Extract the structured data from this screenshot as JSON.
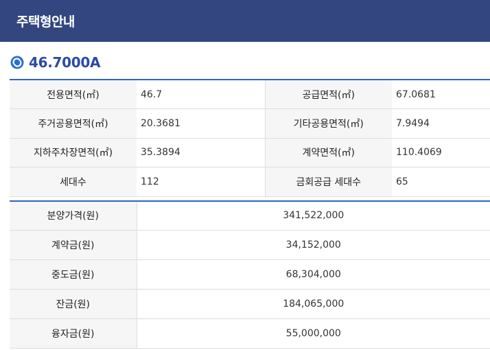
{
  "header": {
    "title": "주택형안내"
  },
  "housing_type": {
    "icon": "refresh-icon",
    "label": "46.7000A"
  },
  "areas": [
    {
      "label": "전용면적(㎡)",
      "value": "46.7"
    },
    {
      "label": "공급면적(㎡)",
      "value": "67.0681"
    },
    {
      "label": "주거공용면적(㎡)",
      "value": "20.3681"
    },
    {
      "label": "기타공용면적(㎡)",
      "value": "7.9494"
    },
    {
      "label": "지하주차장면적(㎡)",
      "value": "35.3894"
    },
    {
      "label": "계약면적(㎡)",
      "value": "110.4069"
    },
    {
      "label": "세대수",
      "value": "112"
    },
    {
      "label": "금회공급 세대수",
      "value": "65"
    }
  ],
  "prices": [
    {
      "label": "분양가격(원)",
      "value": "341,522,000"
    },
    {
      "label": "계약금(원)",
      "value": "34,152,000"
    },
    {
      "label": "중도금(원)",
      "value": "68,304,000"
    },
    {
      "label": "잔금(원)",
      "value": "184,065,000"
    },
    {
      "label": "융자금(원)",
      "value": "55,000,000"
    }
  ],
  "colors": {
    "header_bg": "#33467f",
    "accent": "#2d62c7",
    "label_bg": "#f6f6f6",
    "type_text": "#2a4aa6"
  }
}
